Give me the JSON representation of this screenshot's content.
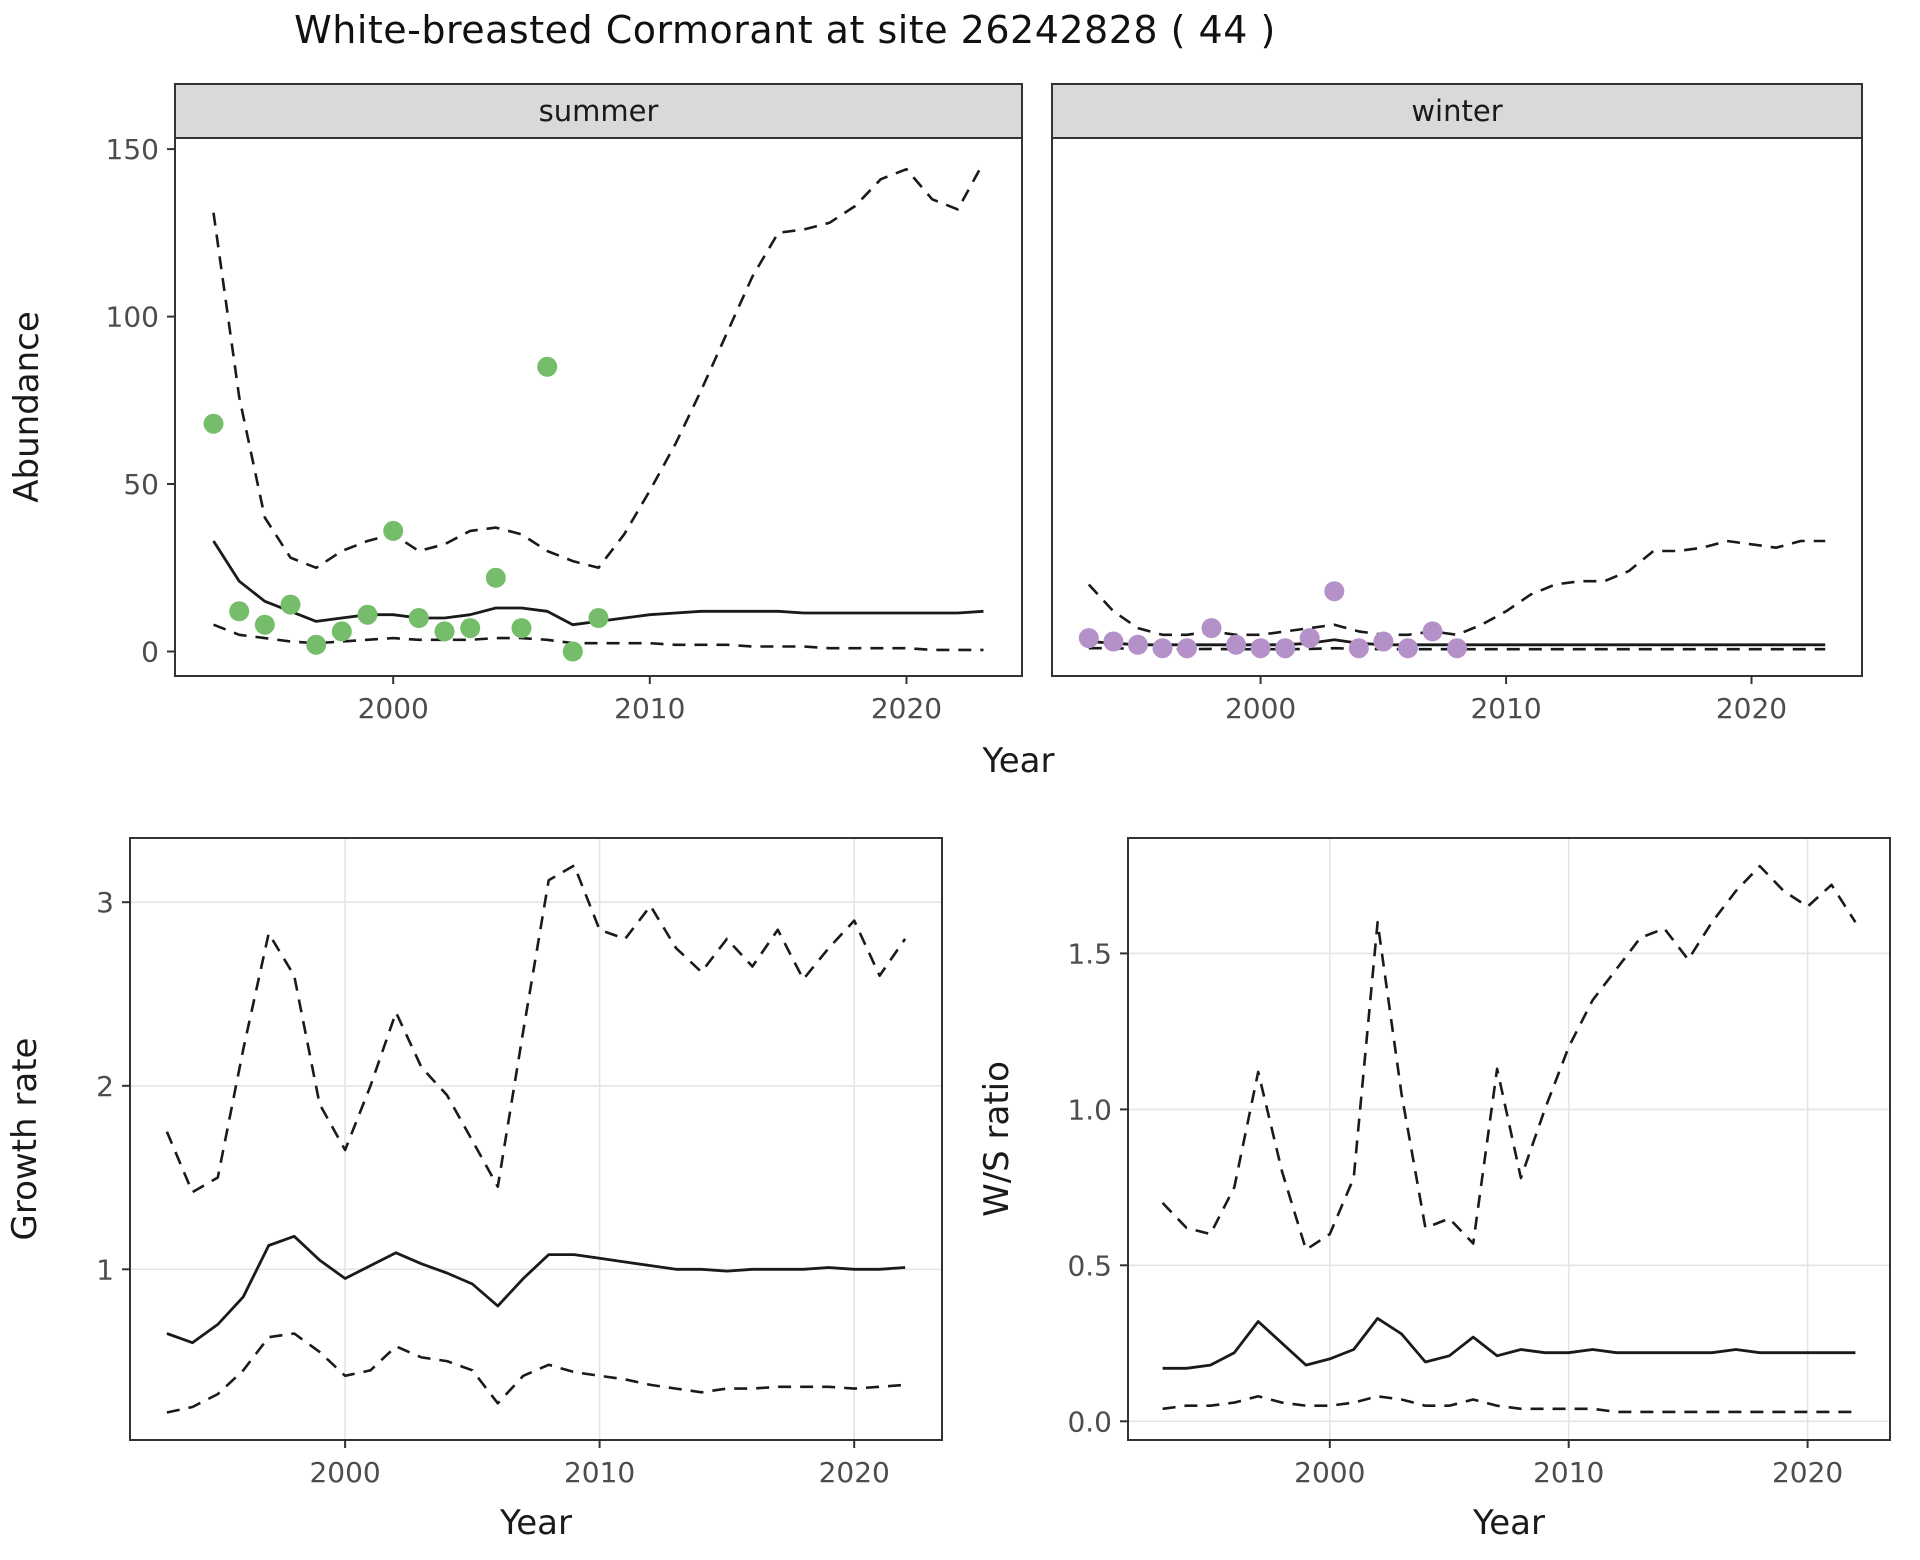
{
  "title": "White-breasted Cormorant at site 26242828 ( 44 )",
  "colors": {
    "line": "#1a1a1a",
    "grid": "#e4e4e4",
    "border": "#333333",
    "tick_text": "#4d4d4d",
    "strip_bg": "#d9d9d9",
    "summer_point": "#75bd6a",
    "winter_point": "#b491c8"
  },
  "chart_data": [
    {
      "id": "abundance",
      "type": "line",
      "xlabel": "Year",
      "ylabel": "Abundance",
      "xlim": [
        1991.5,
        2024.5
      ],
      "ylim": [
        -7.3,
        153.3
      ],
      "grid": false,
      "legend": "none",
      "x_ticks": [
        2000,
        2010,
        2020
      ],
      "x_tick_labels": [
        "2000",
        "2010",
        "2020"
      ],
      "y_ticks": [
        0,
        50,
        100,
        150
      ],
      "y_tick_labels": [
        "0",
        "50",
        "100",
        "150"
      ],
      "years": [
        1993,
        1994,
        1995,
        1996,
        1997,
        1998,
        1999,
        2000,
        2001,
        2002,
        2003,
        2004,
        2005,
        2006,
        2007,
        2008,
        2009,
        2010,
        2011,
        2012,
        2013,
        2014,
        2015,
        2016,
        2017,
        2018,
        2019,
        2020,
        2021,
        2022,
        2023
      ],
      "facets": [
        {
          "label": "summer",
          "point_color": "#75bd6a",
          "points": {
            "years": [
              1993,
              1994,
              1995,
              1996,
              1997,
              1998,
              1999,
              2000,
              2001,
              2002,
              2003,
              2004,
              2005,
              2006,
              2007,
              2008
            ],
            "values": [
              68,
              12,
              8,
              14,
              2,
              6,
              11,
              36,
              10,
              6,
              7,
              22,
              7,
              85,
              0,
              10
            ]
          },
          "fit": [
            33,
            21,
            15,
            12,
            9,
            10,
            11,
            11,
            10,
            10,
            11,
            13,
            13,
            12,
            8,
            9,
            10,
            11,
            11.5,
            12,
            12,
            12,
            12,
            11.5,
            11.5,
            11.5,
            11.5,
            11.5,
            11.5,
            11.5,
            12
          ],
          "upper": [
            131,
            76,
            40,
            28,
            25,
            30,
            33,
            35,
            30,
            32,
            36,
            37,
            35,
            30,
            27,
            25,
            35,
            48,
            62,
            78,
            95,
            112,
            125,
            126,
            128,
            133,
            141,
            144,
            135,
            132,
            146
          ],
          "lower": [
            8,
            5,
            4,
            3,
            2.5,
            3,
            3.5,
            4,
            3.5,
            3.5,
            3.5,
            4,
            4,
            3.5,
            2.5,
            2.5,
            2.5,
            2.5,
            2,
            2,
            2,
            1.5,
            1.5,
            1.5,
            1,
            1,
            1,
            1,
            0.5,
            0.5,
            0.5
          ]
        },
        {
          "label": "winter",
          "point_color": "#b491c8",
          "points": {
            "years": [
              1993,
              1994,
              1995,
              1996,
              1997,
              1998,
              1999,
              2000,
              2001,
              2002,
              2003,
              2004,
              2005,
              2006,
              2007,
              2008
            ],
            "values": [
              4,
              3,
              2,
              1,
              1,
              7,
              2,
              1,
              1,
              4,
              18,
              1,
              3,
              1,
              6,
              1
            ]
          },
          "fit": [
            3,
            2.5,
            2,
            2,
            2,
            2,
            2,
            2,
            2,
            2.5,
            3.5,
            2.5,
            2,
            2,
            2,
            2,
            2,
            2,
            2,
            2,
            2,
            2,
            2,
            2,
            2,
            2,
            2,
            2,
            2,
            2,
            2
          ],
          "upper": [
            20,
            12,
            7,
            5,
            5,
            6,
            5,
            5,
            6,
            7,
            8,
            6,
            5,
            5,
            6,
            5,
            8,
            12,
            17,
            20,
            21,
            21,
            24,
            30,
            30,
            31,
            33,
            32,
            31,
            33,
            33
          ],
          "lower": [
            1,
            1,
            0.8,
            0.7,
            0.7,
            0.8,
            0.7,
            0.7,
            0.7,
            0.8,
            1,
            0.8,
            0.7,
            0.7,
            0.7,
            0.7,
            0.7,
            0.7,
            0.7,
            0.7,
            0.7,
            0.7,
            0.7,
            0.7,
            0.7,
            0.7,
            0.7,
            0.7,
            0.7,
            0.7,
            0.7
          ]
        }
      ]
    },
    {
      "id": "growth_rate",
      "type": "line",
      "xlabel": "Year",
      "ylabel": "Growth rate",
      "xlim": [
        1991.55,
        2023.45
      ],
      "ylim": [
        0.07,
        3.35
      ],
      "grid": true,
      "legend": "none",
      "x_ticks": [
        2000,
        2010,
        2020
      ],
      "x_tick_labels": [
        "2000",
        "2010",
        "2020"
      ],
      "y_ticks": [
        1,
        2,
        3
      ],
      "y_tick_labels": [
        "1",
        "2",
        "3"
      ],
      "years": [
        1993,
        1994,
        1995,
        1996,
        1997,
        1998,
        1999,
        2000,
        2001,
        2002,
        2003,
        2004,
        2005,
        2006,
        2007,
        2008,
        2009,
        2010,
        2011,
        2012,
        2013,
        2014,
        2015,
        2016,
        2017,
        2018,
        2019,
        2020,
        2021,
        2022
      ],
      "fit": [
        0.65,
        0.6,
        0.7,
        0.85,
        1.13,
        1.18,
        1.05,
        0.95,
        1.02,
        1.09,
        1.03,
        0.98,
        0.92,
        0.8,
        0.95,
        1.08,
        1.08,
        1.06,
        1.04,
        1.02,
        1.0,
        1.0,
        0.99,
        1.0,
        1.0,
        1.0,
        1.01,
        1.0,
        1.0,
        1.01
      ],
      "upper": [
        1.75,
        1.42,
        1.5,
        2.2,
        2.83,
        2.6,
        1.9,
        1.65,
        2.0,
        2.4,
        2.1,
        1.95,
        1.7,
        1.45,
        2.3,
        3.12,
        3.2,
        2.85,
        2.8,
        2.98,
        2.75,
        2.62,
        2.8,
        2.65,
        2.85,
        2.58,
        2.75,
        2.9,
        2.6,
        2.8
      ],
      "lower": [
        0.22,
        0.25,
        0.32,
        0.45,
        0.63,
        0.65,
        0.55,
        0.42,
        0.45,
        0.58,
        0.52,
        0.5,
        0.45,
        0.27,
        0.42,
        0.48,
        0.44,
        0.42,
        0.4,
        0.37,
        0.35,
        0.33,
        0.35,
        0.35,
        0.36,
        0.36,
        0.36,
        0.35,
        0.36,
        0.37
      ]
    },
    {
      "id": "ws_ratio",
      "type": "line",
      "xlabel": "Year",
      "ylabel": "W/S ratio",
      "xlim": [
        1991.55,
        2023.45
      ],
      "ylim": [
        -0.06,
        1.87
      ],
      "grid": true,
      "legend": "none",
      "x_ticks": [
        2000,
        2010,
        2020
      ],
      "x_tick_labels": [
        "2000",
        "2010",
        "2020"
      ],
      "y_ticks": [
        0.0,
        0.5,
        1.0,
        1.5
      ],
      "y_tick_labels": [
        "0.0",
        "0.5",
        "1.0",
        "1.5"
      ],
      "years": [
        1993,
        1994,
        1995,
        1996,
        1997,
        1998,
        1999,
        2000,
        2001,
        2002,
        2003,
        2004,
        2005,
        2006,
        2007,
        2008,
        2009,
        2010,
        2011,
        2012,
        2013,
        2014,
        2015,
        2016,
        2017,
        2018,
        2019,
        2020,
        2021,
        2022
      ],
      "fit": [
        0.17,
        0.17,
        0.18,
        0.22,
        0.32,
        0.25,
        0.18,
        0.2,
        0.23,
        0.33,
        0.28,
        0.19,
        0.21,
        0.27,
        0.21,
        0.23,
        0.22,
        0.22,
        0.23,
        0.22,
        0.22,
        0.22,
        0.22,
        0.22,
        0.23,
        0.22,
        0.22,
        0.22,
        0.22,
        0.22
      ],
      "upper": [
        0.7,
        0.62,
        0.6,
        0.75,
        1.12,
        0.8,
        0.55,
        0.6,
        0.78,
        1.6,
        1.05,
        0.62,
        0.65,
        0.57,
        1.13,
        0.78,
        1.0,
        1.2,
        1.35,
        1.45,
        1.55,
        1.58,
        1.48,
        1.6,
        1.7,
        1.78,
        1.7,
        1.65,
        1.72,
        1.6
      ],
      "lower": [
        0.04,
        0.05,
        0.05,
        0.06,
        0.08,
        0.06,
        0.05,
        0.05,
        0.06,
        0.08,
        0.07,
        0.05,
        0.05,
        0.07,
        0.05,
        0.04,
        0.04,
        0.04,
        0.04,
        0.03,
        0.03,
        0.03,
        0.03,
        0.03,
        0.03,
        0.03,
        0.03,
        0.03,
        0.03,
        0.03
      ]
    }
  ]
}
